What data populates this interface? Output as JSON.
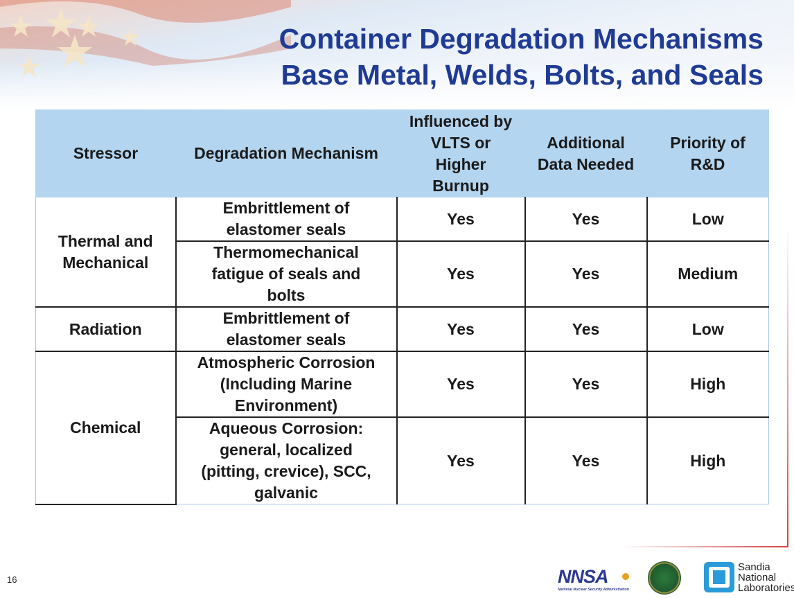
{
  "title": {
    "line1": "Container Degradation Mechanisms",
    "line2": "Base Metal, Welds, Bolts, and Seals"
  },
  "table": {
    "headers": [
      "Stressor",
      "Degradation Mechanism",
      "Influenced by VLTS or Higher Burnup",
      "Additional Data Needed",
      "Priority of R&D"
    ],
    "stressors": [
      "Thermal  and Mechanical",
      "Radiation",
      "Chemical"
    ],
    "rows": [
      {
        "mechanism": "Embrittlement of elastomer seals",
        "influenced": "Yes",
        "data_needed": "Yes",
        "priority": "Low"
      },
      {
        "mechanism": "Thermomechanical fatigue of seals and bolts",
        "influenced": "Yes",
        "data_needed": "Yes",
        "priority": "Medium"
      },
      {
        "mechanism": "Embrittlement of elastomer seals",
        "influenced": "Yes",
        "data_needed": "Yes",
        "priority": "Low"
      },
      {
        "mechanism": "Atmospheric Corrosion (Including Marine Environment)",
        "influenced": "Yes",
        "data_needed": "Yes",
        "priority": "High"
      },
      {
        "mechanism": "Aqueous Corrosion: general, localized (pitting, crevice), SCC, galvanic",
        "influenced": "Yes",
        "data_needed": "Yes",
        "priority": "High"
      }
    ]
  },
  "footer": {
    "page_number": "16",
    "logos": {
      "nnsa": "NNSA",
      "nnsa_sub": "National Nuclear Security Administration",
      "sandia": [
        "Sandia",
        "National",
        "Laboratories"
      ]
    }
  },
  "colors": {
    "title": "#1f3b94",
    "header_bg": "#b3d5f0",
    "accent_red": "#d04040"
  }
}
